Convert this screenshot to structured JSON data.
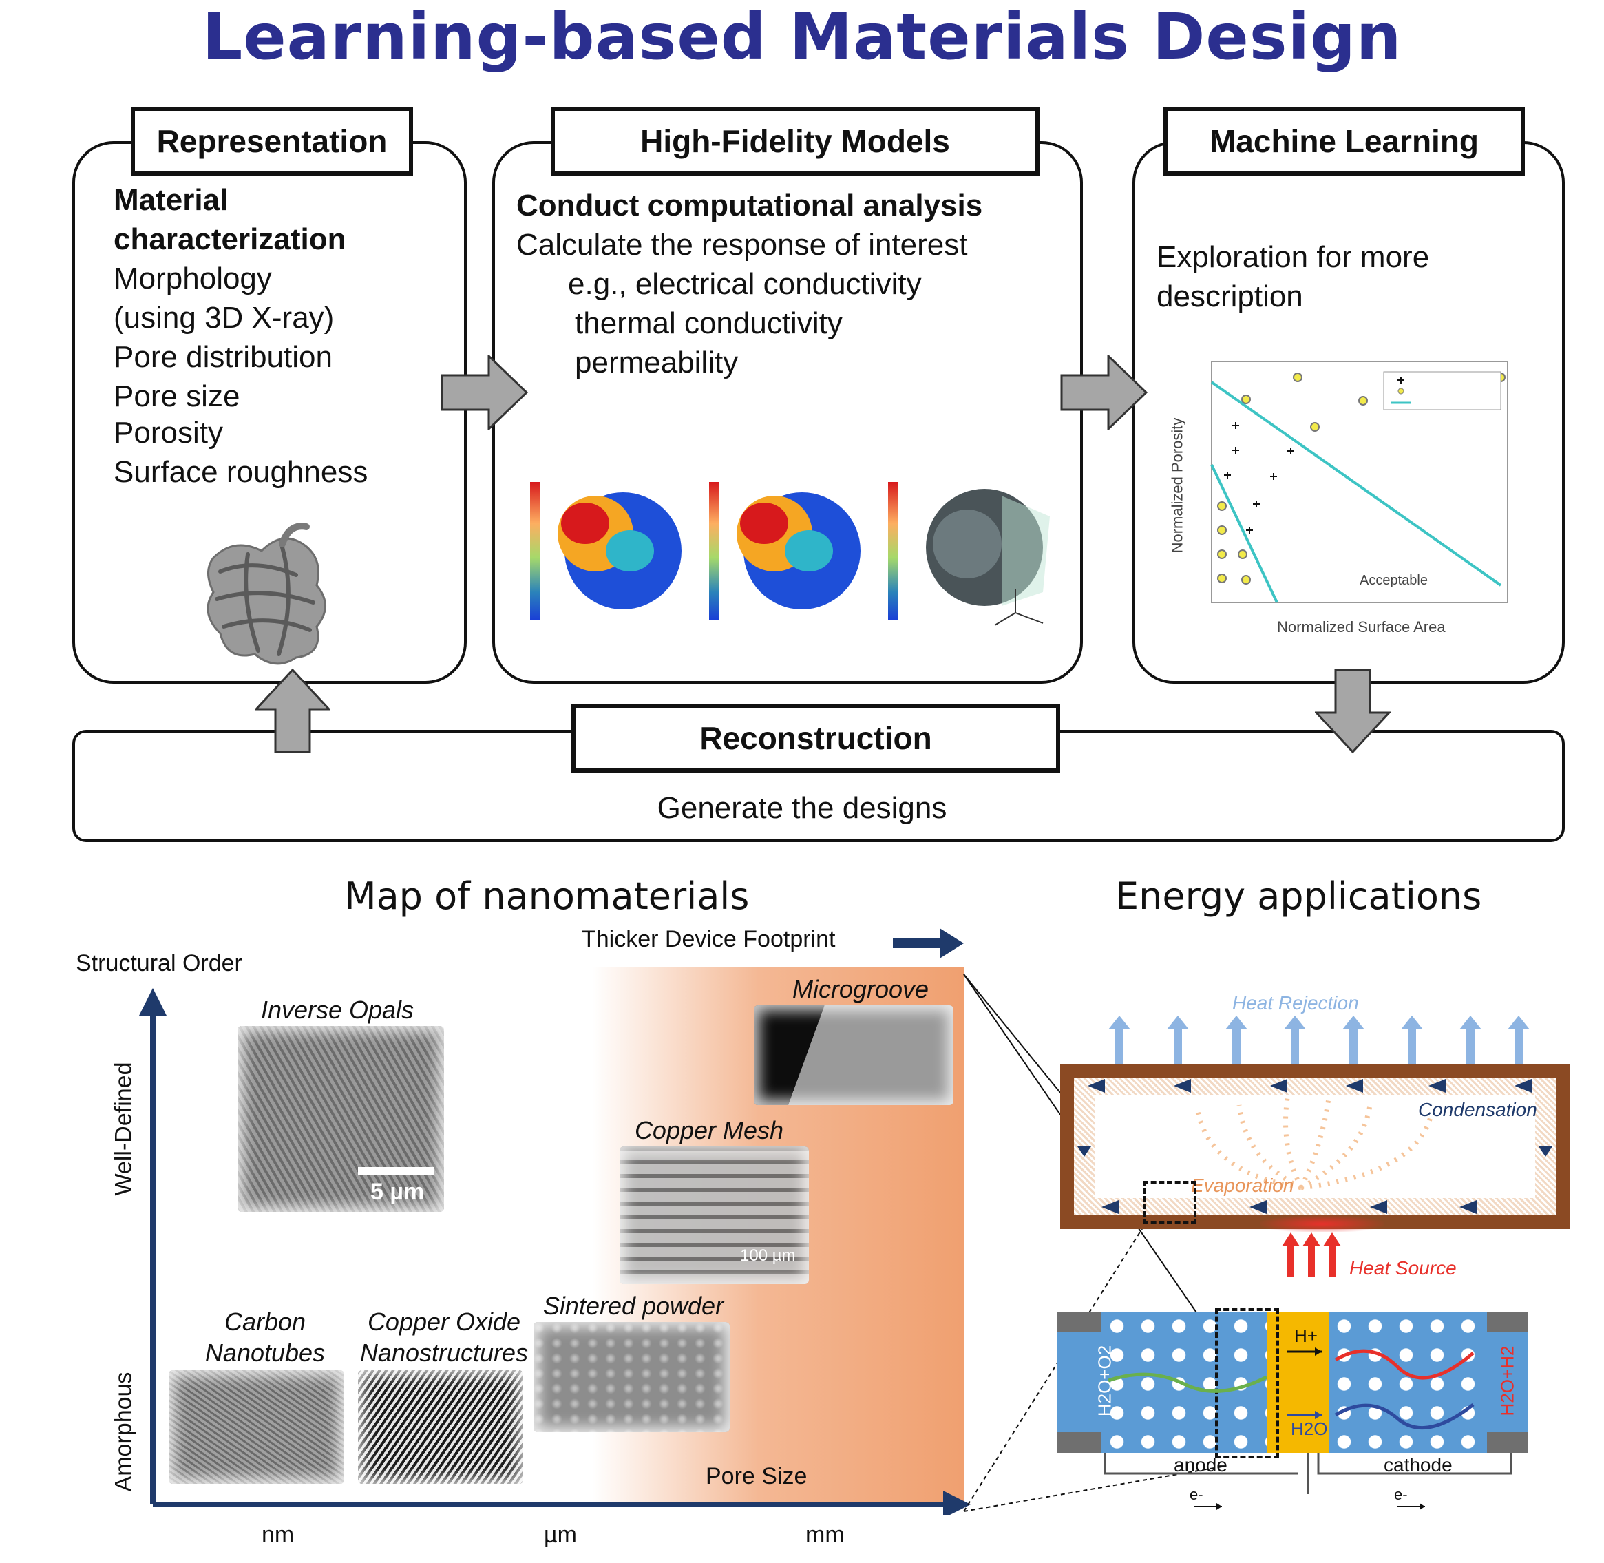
{
  "title": "Learning-based Materials Design",
  "workflow": {
    "representation": {
      "label": "Representation",
      "heading_line1": "Material",
      "heading_line2": "characterization",
      "items": [
        "Morphology",
        "(using 3D X-ray)",
        "Pore distribution",
        "Pore size",
        "Porosity",
        "Surface roughness"
      ]
    },
    "high_fidelity": {
      "label": "High-Fidelity Models",
      "heading": "Conduct computational analysis",
      "line1": "Calculate the response of interest",
      "line2": "e.g., electrical conductivity",
      "line3": "thermal conductivity",
      "line4": "permeability"
    },
    "machine_learning": {
      "label": "Machine Learning",
      "line1": "Exploration for more",
      "line2": "description",
      "plot": {
        "xlabel": "Normalized Surface Area",
        "ylabel": "Normalized Porosity",
        "region_label": "Acceptable"
      }
    },
    "reconstruction": {
      "label": "Reconstruction",
      "text": "Generate the designs"
    }
  },
  "map": {
    "title": "Map of nanomaterials",
    "footprint_label": "Thicker Device Footprint",
    "y_axis_label": "Structural Order",
    "y_top": "Well-Defined",
    "y_bottom": "Amorphous",
    "x_axis_label": "Pore Size",
    "x_ticks": [
      "nm",
      "µm",
      "mm"
    ],
    "materials": {
      "inverse_opals": "Inverse Opals",
      "inverse_opals_scale": "5 µm",
      "microgroove": "Microgroove",
      "copper_mesh": "Copper Mesh",
      "copper_mesh_scale": "100 µm",
      "sintered_powder": "Sintered powder",
      "carbon_nanotubes_l1": "Carbon",
      "carbon_nanotubes_l2": "Nanotubes",
      "copper_oxide_l1": "Copper Oxide",
      "copper_oxide_l2": "Nanostructures"
    }
  },
  "energy": {
    "title": "Energy applications",
    "heat_rejection": "Heat Rejection",
    "condensation": "Condensation",
    "evaporation": "Evaporation",
    "heat_source": "Heat Source",
    "anode": "anode",
    "cathode": "cathode",
    "electron": "e-",
    "proton": "H+",
    "water": "H2O",
    "left_species": "H2O+O2",
    "right_species": "H2O+H2"
  },
  "colors": {
    "title": "#2b2f8f",
    "axis": "#1f3a6b",
    "arrow_gray": "#a6a6a6",
    "gradient": "#f0a070",
    "heat_pipe": "#8b4a23",
    "heat_blue": "#8db4e2",
    "heat_source": "#e8302a",
    "membrane": "#f5b800",
    "cell_blue": "#5b9bd5"
  }
}
